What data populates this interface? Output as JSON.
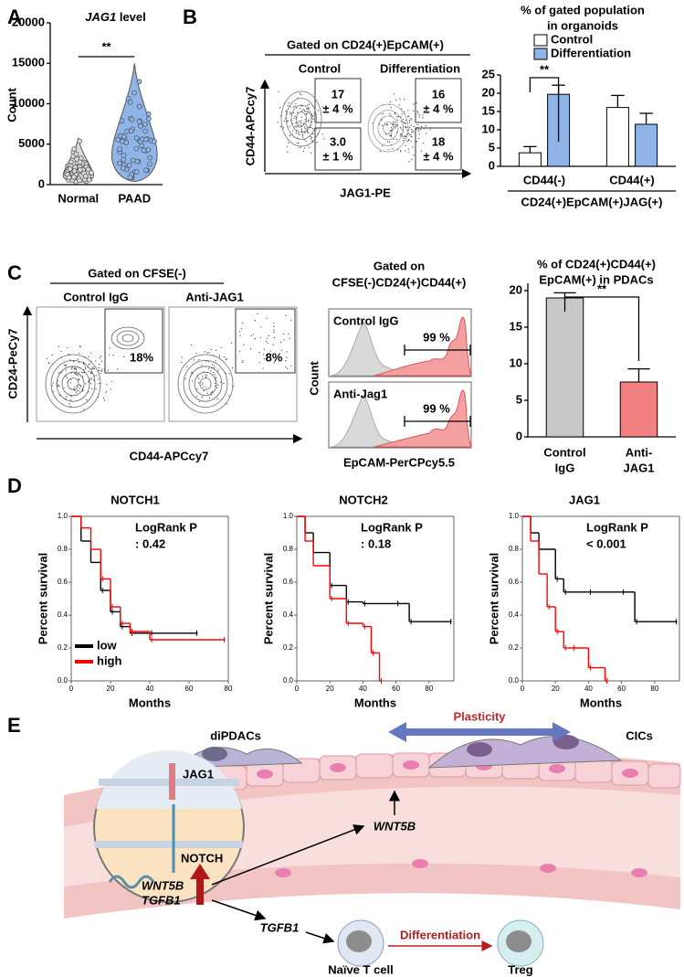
{
  "panel_labels": [
    "A",
    "B",
    "C",
    "D",
    "E"
  ],
  "chart_data": [
    {
      "type": "violin",
      "gene": "JAG1",
      "title": "level",
      "ylabel": "Count",
      "categories": [
        "Normal",
        "PAAD"
      ],
      "min": [
        300,
        400
      ],
      "median": [
        1500,
        5200
      ],
      "max": [
        5800,
        15000
      ],
      "colors": [
        "#d9d9d9",
        "#8fb4e8"
      ],
      "ylim": [
        0,
        20000
      ],
      "yticks": [
        0,
        5000,
        10000,
        15000,
        20000
      ],
      "annotation": "**"
    },
    {
      "type": "bar",
      "title": [
        "% of gated population",
        "in organoids"
      ],
      "categories": [
        "CD44(-)",
        "CD44(+)"
      ],
      "xlabel": "CD24(+)EpCAM(+)JAG(+)",
      "series": [
        {
          "name": "Control",
          "color": "#ffffff",
          "values": [
            3.7,
            16.1
          ],
          "errors": [
            1.7,
            3.3
          ]
        },
        {
          "name": "Differentiation",
          "color": "#8fb4e8",
          "values": [
            19.7,
            11.5
          ],
          "errors": [
            2.5,
            3.0
          ]
        }
      ],
      "ylim": [
        0,
        25
      ],
      "yticks": [
        0,
        5,
        10,
        15,
        20,
        25
      ],
      "annotation": "**"
    },
    {
      "type": "bar",
      "title": [
        "% of CD24(+)CD44(+)",
        "EpCAM(+) in PDACs"
      ],
      "categories": [
        [
          "Control",
          "IgG"
        ],
        [
          "Anti-",
          "JAG1"
        ]
      ],
      "series": [
        {
          "colors": [
            "#c8c8c8",
            "#f28080"
          ],
          "values": [
            19,
            7.5
          ],
          "errors": [
            0.7,
            1.8
          ]
        }
      ],
      "ylim": [
        0,
        21
      ],
      "yticks": [
        0,
        5,
        10,
        15,
        20
      ],
      "annotation": "**"
    },
    {
      "type": "line",
      "title": "NOTCH1",
      "xlabel": "Months",
      "ylabel": "Percent survival",
      "annotation": [
        "LogRank P",
        ": 0.42"
      ],
      "xlim": [
        0,
        80
      ],
      "xticks": [
        0,
        20,
        40,
        60,
        80
      ],
      "ylim": [
        0,
        1
      ],
      "yticks": [
        {
          "value": 0,
          "label": "0.0"
        },
        0.2,
        0.4,
        0.6,
        0.8,
        {
          "value": 1,
          "label": "1.0"
        }
      ],
      "legend": "lower left",
      "series": [
        {
          "name": "low",
          "color": "#000000",
          "x": [
            0,
            5,
            10,
            15,
            20,
            25,
            30,
            40,
            63
          ],
          "values": [
            1,
            0.85,
            0.72,
            0.55,
            0.42,
            0.33,
            0.29,
            0.29,
            0.29
          ]
        },
        {
          "name": "high",
          "color": "#ff0000",
          "x": [
            0,
            5,
            10,
            15,
            20,
            25,
            30,
            40,
            77
          ],
          "values": [
            1,
            0.93,
            0.8,
            0.62,
            0.45,
            0.35,
            0.3,
            0.25,
            0.25
          ]
        }
      ]
    },
    {
      "type": "line",
      "title": "NOTCH2",
      "xlabel": "Months",
      "ylabel": "Percent survival",
      "annotation": [
        "LogRank P",
        ": 0.18"
      ],
      "xlim": [
        0,
        95
      ],
      "xticks": [
        0,
        20,
        40,
        60,
        80
      ],
      "ylim": [
        0,
        1
      ],
      "yticks": [
        {
          "value": 0,
          "label": "0.0"
        },
        0.2,
        0.4,
        0.6,
        0.8,
        {
          "value": 1,
          "label": "1.0"
        }
      ],
      "series": [
        {
          "color": "#000000",
          "x": [
            0,
            5,
            10,
            20,
            30,
            40,
            60,
            68,
            92
          ],
          "values": [
            1,
            0.9,
            0.78,
            0.58,
            0.48,
            0.47,
            0.47,
            0.36,
            0.36
          ]
        },
        {
          "color": "#ff0000",
          "x": [
            0,
            5,
            10,
            20,
            30,
            40,
            45,
            50
          ],
          "values": [
            1,
            0.85,
            0.7,
            0.5,
            0.35,
            0.33,
            0.17,
            0
          ]
        }
      ]
    },
    {
      "type": "line",
      "title": "JAG1",
      "xlabel": "Months",
      "ylabel": "Percent survival",
      "annotation": [
        "LogRank P",
        "< 0.001"
      ],
      "xlim": [
        0,
        95
      ],
      "xticks": [
        0,
        20,
        40,
        60,
        80
      ],
      "ylim": [
        0,
        1
      ],
      "yticks": [
        {
          "value": 0,
          "label": "0.0"
        },
        0.2,
        0.4,
        0.6,
        0.8,
        {
          "value": 1,
          "label": "1.0"
        }
      ],
      "series": [
        {
          "color": "#000000",
          "x": [
            0,
            5,
            10,
            20,
            25,
            40,
            60,
            68,
            92
          ],
          "values": [
            1,
            0.9,
            0.8,
            0.62,
            0.54,
            0.54,
            0.54,
            0.36,
            0.36
          ]
        },
        {
          "color": "#ff0000",
          "x": [
            0,
            5,
            10,
            15,
            20,
            25,
            30,
            40,
            50
          ],
          "values": [
            1,
            0.85,
            0.65,
            0.45,
            0.3,
            0.2,
            0.2,
            0.08,
            0
          ]
        }
      ]
    }
  ],
  "flow_b": {
    "gate": "Gated on CD24(+)EpCAM(+)",
    "conditions": [
      "Control",
      "Differentiation"
    ],
    "ylabel": "CD44-APCcy7",
    "xlabel": "JAG1-PE",
    "gates": [
      [
        [
          "17",
          "± 4 %"
        ],
        [
          "3.0",
          "± 1 %"
        ]
      ],
      [
        [
          "16",
          "± 4 %"
        ],
        [
          "18",
          "± 4 %"
        ]
      ]
    ]
  },
  "flow_c": {
    "gate": "Gated on CFSE(-)",
    "conditions": [
      "Control IgG",
      "Anti-JAG1"
    ],
    "ylabel": "CD24-PeCy7",
    "xlabel": "CD44-APCcy7",
    "gates": [
      "18%",
      "8%"
    ]
  },
  "histogram_c": {
    "gate": [
      "Gated on",
      "CFSE(-)CD24(+)CD44(+)"
    ],
    "conditions": [
      "Control IgG",
      "Anti-Jag1"
    ],
    "gates": [
      "99 %",
      "99 %"
    ],
    "ylabel": "Count",
    "xlabel": "EpCAM-PerCPcy5.5"
  },
  "diagram": {
    "cells": [
      "diPDACs",
      "CICs"
    ],
    "plasticity": "Plasticity",
    "receptor": "JAG1",
    "notch": "NOTCH",
    "genes": [
      "WNT5B",
      "TGFB1"
    ],
    "wnt": "WNT5B",
    "tgf": "TGFB1",
    "naive": "Naïve T cell",
    "differentiation": "Differentiation",
    "treg": "Treg"
  }
}
